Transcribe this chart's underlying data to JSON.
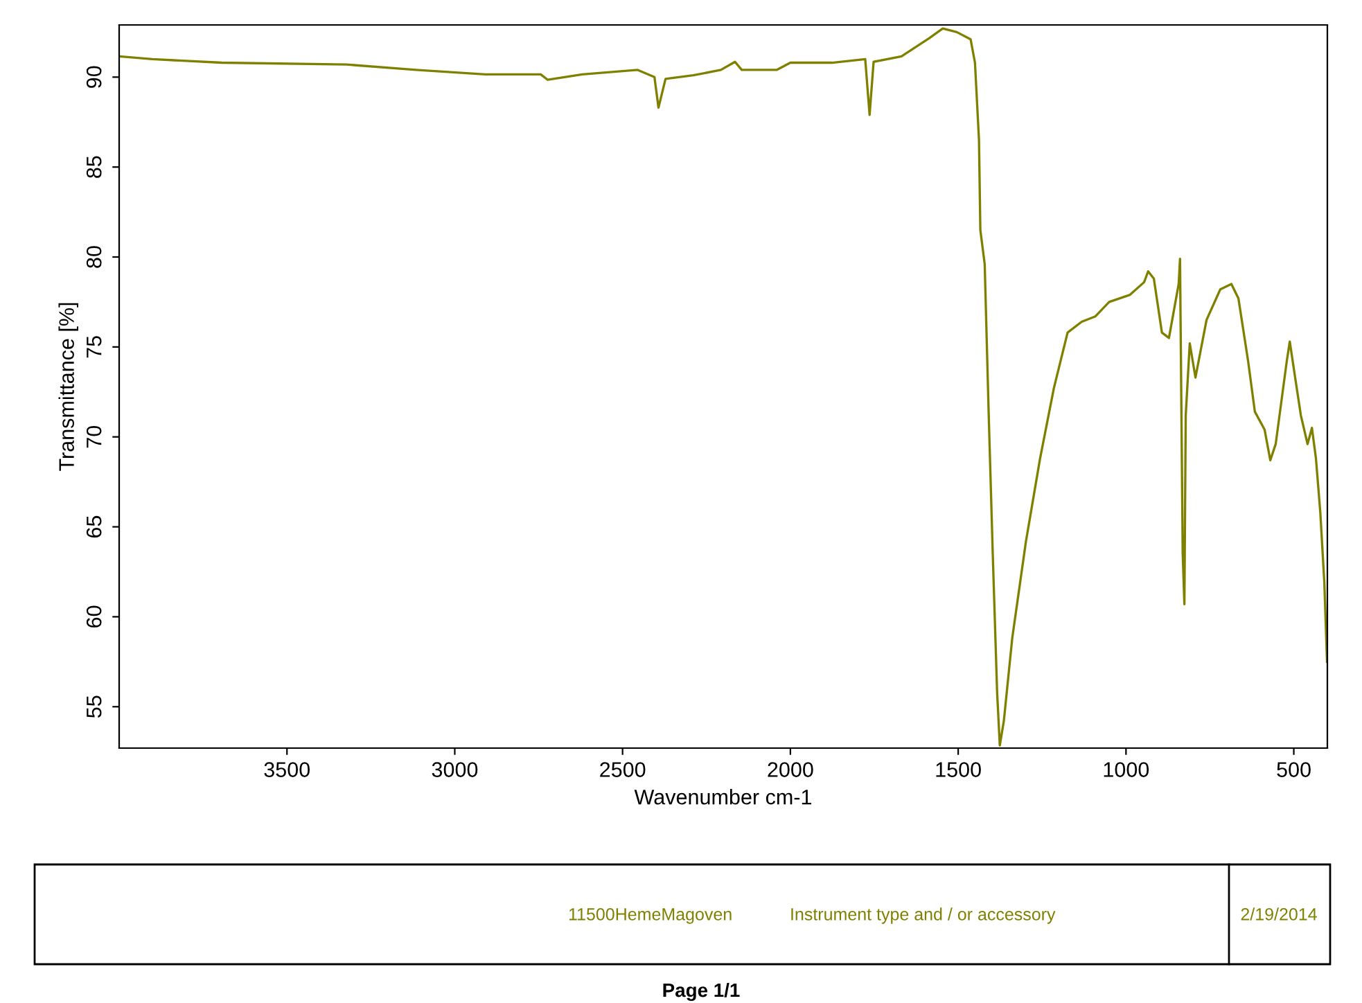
{
  "chart_data": {
    "type": "line",
    "xlabel": "Wavenumber cm-1",
    "ylabel": "Transmittance [%]",
    "xlim": [
      4000,
      400
    ],
    "ylim": [
      52.7,
      92.9
    ],
    "xticks": [
      3500,
      3000,
      2500,
      2000,
      1500,
      1000,
      500
    ],
    "yticks": [
      55,
      60,
      65,
      70,
      75,
      80,
      85,
      90
    ],
    "grid": false,
    "series": [
      {
        "color": "#808000",
        "x": [
          4000,
          3901,
          3694,
          3322,
          3116,
          2909,
          2744,
          2723,
          2620,
          2455,
          2405,
          2393,
          2372,
          2289,
          2207,
          2165,
          2145,
          2041,
          2000,
          1876,
          1777,
          1764,
          1752,
          1669,
          1587,
          1546,
          1504,
          1463,
          1450,
          1438,
          1434,
          1421,
          1409,
          1397,
          1384,
          1376,
          1364,
          1339,
          1298,
          1256,
          1215,
          1174,
          1132,
          1091,
          1050,
          988,
          946,
          934,
          917,
          893,
          872,
          843,
          839,
          831,
          826,
          822,
          810,
          793,
          760,
          719,
          686,
          665,
          636,
          616,
          587,
          570,
          554,
          521,
          512,
          496,
          479,
          459,
          446,
          434,
          421,
          409,
          401
        ],
        "values": [
          91.15,
          91.0,
          90.8,
          90.7,
          90.4,
          90.15,
          90.15,
          89.85,
          90.15,
          90.4,
          90.0,
          88.3,
          89.9,
          90.1,
          90.4,
          90.85,
          90.4,
          90.4,
          90.8,
          90.8,
          91.0,
          87.9,
          90.85,
          91.15,
          92.15,
          92.7,
          92.5,
          92.1,
          90.8,
          86.5,
          81.5,
          79.6,
          71.2,
          63.5,
          55.8,
          52.85,
          54.2,
          58.8,
          64.2,
          68.8,
          72.7,
          75.8,
          76.4,
          76.7,
          77.5,
          77.9,
          78.6,
          79.2,
          78.8,
          75.8,
          75.5,
          78.5,
          79.9,
          63.5,
          60.7,
          71.2,
          75.2,
          73.3,
          76.5,
          78.2,
          78.5,
          77.7,
          74.2,
          71.4,
          70.4,
          68.7,
          69.6,
          74.2,
          75.3,
          73.3,
          71.2,
          69.6,
          70.5,
          68.8,
          65.8,
          61.9,
          57.5
        ]
      }
    ],
    "annotations": [
      "11500HemeMagoven",
      "Instrument type and / or accessory",
      "2/19/2014",
      "Page 1/1"
    ]
  }
}
